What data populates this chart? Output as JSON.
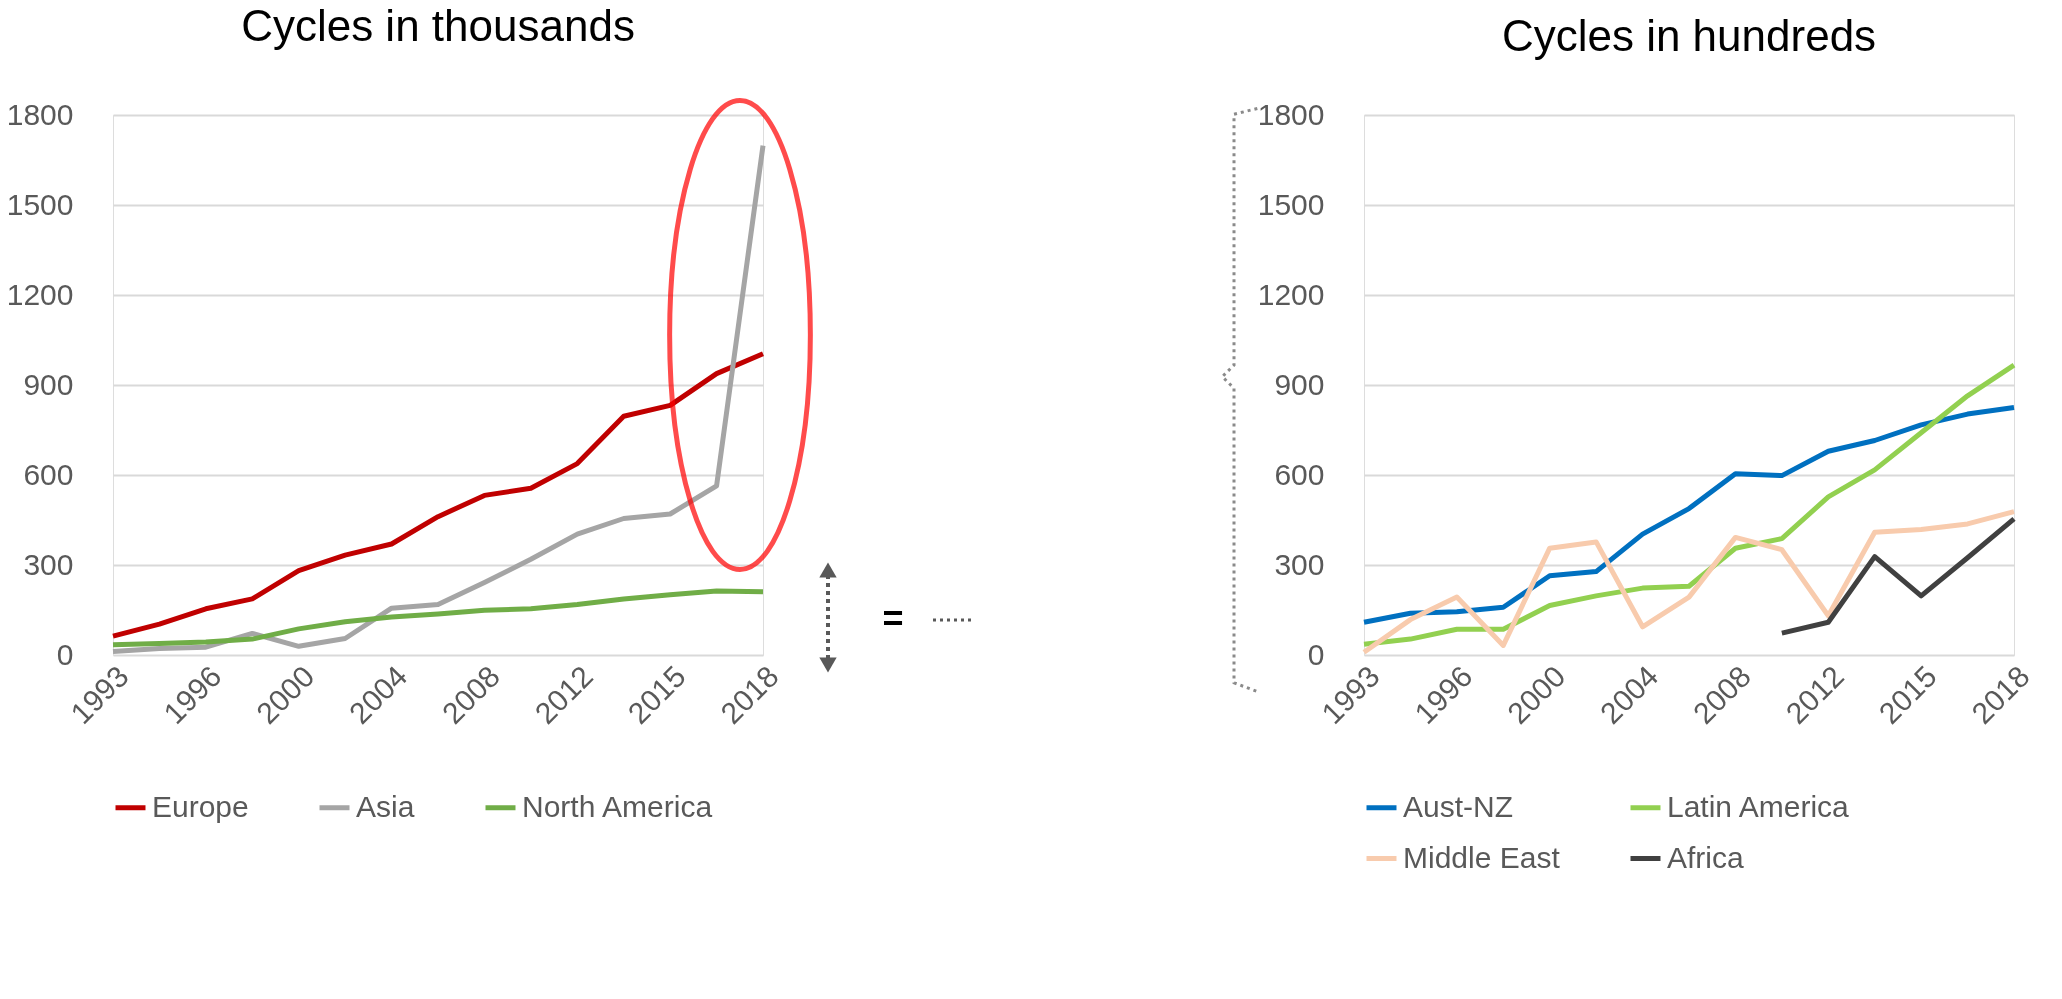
{
  "chart_data": [
    {
      "type": "line",
      "title": "Cycles in thousands",
      "categories": [
        "1993",
        null,
        "1996",
        null,
        "2000",
        null,
        "2004",
        null,
        "2008",
        null,
        "2012",
        null,
        "2015",
        null,
        "2018"
      ],
      "ylim": [
        0,
        1800
      ],
      "yticks": [
        0,
        300,
        600,
        900,
        1200,
        1500,
        1800
      ],
      "grid": "y",
      "legend": "bottom",
      "annotations": [
        "="
      ],
      "series": [
        {
          "name": "Europe",
          "color": "#c00000",
          "values": [
            63,
            103,
            154,
            187,
            281,
            333,
            370,
            461,
            532,
            556,
            638,
            796,
            832,
            938,
            1004
          ]
        },
        {
          "name": "Asia",
          "color": "#a5a5a5",
          "values": [
            12,
            22,
            26,
            72,
            29,
            55,
            156,
            168,
            242,
            319,
            403,
            455,
            470,
            564,
            1698
          ]
        },
        {
          "name": "North America",
          "color": "#70ad47",
          "values": [
            34,
            38,
            43,
            53,
            87,
            111,
            127,
            137,
            149,
            154,
            168,
            187,
            201,
            213,
            211
          ]
        }
      ]
    },
    {
      "type": "line",
      "title": "Cycles in hundreds",
      "categories": [
        "1993",
        null,
        "1996",
        null,
        "2000",
        null,
        "2004",
        null,
        "2008",
        null,
        "2012",
        null,
        "2015",
        null,
        "2018"
      ],
      "ylim": [
        0,
        1800
      ],
      "yticks": [
        0,
        300,
        600,
        900,
        1200,
        1500,
        1800
      ],
      "grid": "y",
      "legend": "bottom",
      "series": [
        {
          "name": "Aust-NZ",
          "color": "#0070c0",
          "values": [
            109,
            139,
            144,
            159,
            264,
            278,
            403,
            488,
            604,
            598,
            679,
            715,
            767,
            803,
            825
          ]
        },
        {
          "name": "Latin America",
          "color": "#92d050",
          "values": [
            36,
            53,
            86,
            86,
            165,
            197,
            223,
            229,
            356,
            388,
            527,
            617,
            741,
            864,
            966
          ]
        },
        {
          "name": "Middle East",
          "color": "#f8cbad",
          "values": [
            9,
            118,
            193,
            32,
            356,
            377,
            94,
            193,
            392,
            351,
            131,
            409,
            418,
            437,
            478
          ]
        },
        {
          "name": "Africa",
          "color": "#404040",
          "values": [
            null,
            null,
            null,
            null,
            null,
            null,
            null,
            null,
            null,
            73,
            109,
            328,
            197,
            324,
            454
          ]
        }
      ]
    }
  ]
}
